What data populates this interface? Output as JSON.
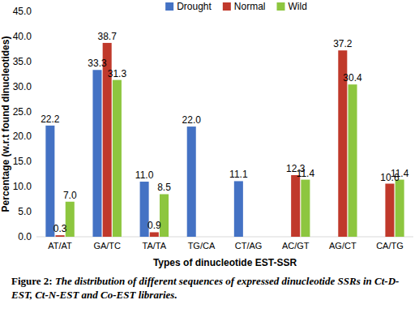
{
  "chart_data": {
    "type": "bar",
    "y_label": "Percentage (w.r.t found dinucleotides)",
    "x_label": "Types of dinucleotide EST-SSR",
    "annotations": [
      "Figure 2:",
      "The distribution of different sequences of expressed dinucleotide SSRs in Ct-D-EST, Ct-N-EST and Co-EST libraries."
    ],
    "categories": [
      "AT/AT",
      "GA/TC",
      "TA/TA",
      "TG/CA",
      "CT/AG",
      "AC/GT",
      "AG/CT",
      "CA/TG"
    ],
    "series": [
      {
        "name": "Drought",
        "color": "#4472c4",
        "values": [
          22.2,
          33.3,
          11.0,
          22.0,
          11.1,
          null,
          null,
          null
        ],
        "value_labels": [
          "22.2",
          "33.3",
          "11.0",
          "22.0",
          "11.1",
          null,
          null,
          null
        ]
      },
      {
        "name": "Normal",
        "color": "#c0392b",
        "values": [
          0.3,
          38.7,
          0.9,
          null,
          null,
          12.3,
          37.2,
          10.6
        ],
        "value_labels": [
          "0.3",
          "38.7",
          "0.9",
          null,
          null,
          "12.3",
          "37.2",
          "10.6"
        ]
      },
      {
        "name": "Wild",
        "color": "#8dc63f",
        "values": [
          7.0,
          31.3,
          8.5,
          null,
          null,
          11.4,
          30.4,
          11.4
        ],
        "value_labels": [
          "7.0",
          "31.3",
          "8.5",
          null,
          null,
          "11.4",
          "30.4",
          "11.4"
        ]
      }
    ],
    "ylim": [
      0,
      45
    ],
    "yticks": [
      {
        "value": 0,
        "label": "0.0"
      },
      {
        "value": 5,
        "label": "5.0"
      },
      {
        "value": 10,
        "label": "10.0"
      },
      {
        "value": 15,
        "label": "15.0"
      },
      {
        "value": 20,
        "label": "20.0"
      },
      {
        "value": 25,
        "label": "25.0"
      },
      {
        "value": 30,
        "label": "30.0"
      },
      {
        "value": 35,
        "label": "35.0"
      },
      {
        "value": 40,
        "label": "40.0"
      },
      {
        "value": 45,
        "label": "45.0"
      }
    ],
    "grid": false,
    "legend": "top",
    "data_labels": true
  }
}
